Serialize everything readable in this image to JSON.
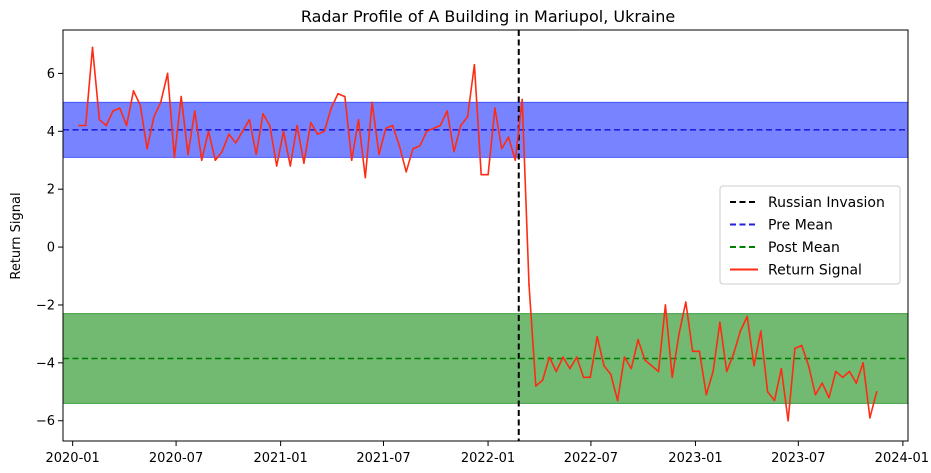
{
  "chart_data": {
    "type": "line",
    "title": "Radar Profile of A Building in Mariupol, Ukraine",
    "xlabel": "",
    "ylabel": "Return Signal",
    "x_type": "date",
    "xlim": [
      "2019-12-15",
      "2024-01-10"
    ],
    "ylim": [
      -6.7,
      7.5
    ],
    "grid": false,
    "legend_position": "center-right",
    "x_ticks": [
      {
        "date": "2020-01-01",
        "label": "2020-01"
      },
      {
        "date": "2020-07-01",
        "label": "2020-07"
      },
      {
        "date": "2021-01-01",
        "label": "2021-01"
      },
      {
        "date": "2021-07-01",
        "label": "2021-07"
      },
      {
        "date": "2022-01-01",
        "label": "2022-01"
      },
      {
        "date": "2022-07-01",
        "label": "2022-07"
      },
      {
        "date": "2023-01-01",
        "label": "2023-01"
      },
      {
        "date": "2023-07-01",
        "label": "2023-07"
      },
      {
        "date": "2024-01-01",
        "label": "2024-01"
      }
    ],
    "y_ticks": [
      -6,
      -4,
      -2,
      0,
      2,
      4,
      6
    ],
    "bands": [
      {
        "series": "Pre Mean",
        "y0": 3.1,
        "y1": 5.0,
        "color": "#4455ff"
      },
      {
        "series": "Post Mean",
        "y0": -5.4,
        "y1": -2.3,
        "color": "#3b9e3b"
      }
    ],
    "series": [
      {
        "name": "Return Signal",
        "color": "#ff2b12",
        "points": [
          [
            "2020-01-12",
            4.2
          ],
          [
            "2020-01-24",
            4.2
          ],
          [
            "2020-02-05",
            6.9
          ],
          [
            "2020-02-17",
            4.4
          ],
          [
            "2020-02-29",
            4.2
          ],
          [
            "2020-03-12",
            4.7
          ],
          [
            "2020-03-24",
            4.8
          ],
          [
            "2020-04-05",
            4.2
          ],
          [
            "2020-04-17",
            5.4
          ],
          [
            "2020-04-29",
            4.9
          ],
          [
            "2020-05-11",
            3.4
          ],
          [
            "2020-05-23",
            4.5
          ],
          [
            "2020-06-04",
            5.0
          ],
          [
            "2020-06-16",
            6.0
          ],
          [
            "2020-06-28",
            3.1
          ],
          [
            "2020-07-10",
            5.2
          ],
          [
            "2020-07-22",
            3.2
          ],
          [
            "2020-08-03",
            4.7
          ],
          [
            "2020-08-15",
            3.0
          ],
          [
            "2020-08-27",
            4.0
          ],
          [
            "2020-09-08",
            3.0
          ],
          [
            "2020-09-20",
            3.3
          ],
          [
            "2020-10-02",
            3.9
          ],
          [
            "2020-10-14",
            3.6
          ],
          [
            "2020-10-26",
            4.0
          ],
          [
            "2020-11-07",
            4.4
          ],
          [
            "2020-11-19",
            3.2
          ],
          [
            "2020-12-01",
            4.6
          ],
          [
            "2020-12-13",
            4.2
          ],
          [
            "2020-12-25",
            2.8
          ],
          [
            "2021-01-06",
            4.0
          ],
          [
            "2021-01-18",
            2.8
          ],
          [
            "2021-01-30",
            4.2
          ],
          [
            "2021-02-11",
            2.9
          ],
          [
            "2021-02-23",
            4.3
          ],
          [
            "2021-03-07",
            3.9
          ],
          [
            "2021-03-19",
            4.0
          ],
          [
            "2021-03-31",
            4.8
          ],
          [
            "2021-04-12",
            5.3
          ],
          [
            "2021-04-24",
            5.2
          ],
          [
            "2021-05-06",
            3.0
          ],
          [
            "2021-05-18",
            4.4
          ],
          [
            "2021-05-30",
            2.4
          ],
          [
            "2021-06-11",
            5.0
          ],
          [
            "2021-06-23",
            3.2
          ],
          [
            "2021-07-05",
            4.1
          ],
          [
            "2021-07-17",
            4.2
          ],
          [
            "2021-07-29",
            3.5
          ],
          [
            "2021-08-10",
            2.6
          ],
          [
            "2021-08-22",
            3.4
          ],
          [
            "2021-09-03",
            3.5
          ],
          [
            "2021-09-15",
            4.0
          ],
          [
            "2021-09-27",
            4.1
          ],
          [
            "2021-10-09",
            4.2
          ],
          [
            "2021-10-21",
            4.7
          ],
          [
            "2021-11-02",
            3.3
          ],
          [
            "2021-11-14",
            4.2
          ],
          [
            "2021-11-26",
            4.5
          ],
          [
            "2021-12-08",
            6.3
          ],
          [
            "2021-12-20",
            2.5
          ],
          [
            "2022-01-01",
            2.5
          ],
          [
            "2022-01-13",
            4.8
          ],
          [
            "2022-01-25",
            3.4
          ],
          [
            "2022-02-06",
            3.8
          ],
          [
            "2022-02-18",
            3.0
          ],
          [
            "2022-03-02",
            5.1
          ],
          [
            "2022-03-14",
            -1.3
          ],
          [
            "2022-03-26",
            -4.8
          ],
          [
            "2022-04-07",
            -4.6
          ],
          [
            "2022-04-19",
            -3.8
          ],
          [
            "2022-05-01",
            -4.3
          ],
          [
            "2022-05-13",
            -3.8
          ],
          [
            "2022-05-25",
            -4.2
          ],
          [
            "2022-06-06",
            -3.8
          ],
          [
            "2022-06-18",
            -4.5
          ],
          [
            "2022-06-30",
            -4.5
          ],
          [
            "2022-07-12",
            -3.1
          ],
          [
            "2022-07-24",
            -4.1
          ],
          [
            "2022-08-05",
            -4.4
          ],
          [
            "2022-08-17",
            -5.3
          ],
          [
            "2022-08-29",
            -3.8
          ],
          [
            "2022-09-10",
            -4.2
          ],
          [
            "2022-09-22",
            -3.2
          ],
          [
            "2022-10-04",
            -3.9
          ],
          [
            "2022-10-16",
            -4.1
          ],
          [
            "2022-10-28",
            -4.3
          ],
          [
            "2022-11-09",
            -2.0
          ],
          [
            "2022-11-21",
            -4.5
          ],
          [
            "2022-12-03",
            -3.0
          ],
          [
            "2022-12-15",
            -1.9
          ],
          [
            "2022-12-27",
            -3.6
          ],
          [
            "2023-01-08",
            -3.6
          ],
          [
            "2023-01-20",
            -5.1
          ],
          [
            "2023-02-01",
            -4.3
          ],
          [
            "2023-02-13",
            -2.6
          ],
          [
            "2023-02-25",
            -4.3
          ],
          [
            "2023-03-09",
            -3.7
          ],
          [
            "2023-03-21",
            -2.9
          ],
          [
            "2023-04-02",
            -2.4
          ],
          [
            "2023-04-14",
            -4.1
          ],
          [
            "2023-04-26",
            -2.9
          ],
          [
            "2023-05-08",
            -5.0
          ],
          [
            "2023-05-20",
            -5.3
          ],
          [
            "2023-06-01",
            -4.2
          ],
          [
            "2023-06-13",
            -6.0
          ],
          [
            "2023-06-25",
            -3.5
          ],
          [
            "2023-07-07",
            -3.4
          ],
          [
            "2023-07-19",
            -4.1
          ],
          [
            "2023-07-31",
            -5.1
          ],
          [
            "2023-08-12",
            -4.7
          ],
          [
            "2023-08-24",
            -5.2
          ],
          [
            "2023-09-05",
            -4.3
          ],
          [
            "2023-09-17",
            -4.5
          ],
          [
            "2023-09-29",
            -4.3
          ],
          [
            "2023-10-11",
            -4.7
          ],
          [
            "2023-10-23",
            -4.0
          ],
          [
            "2023-11-04",
            -5.9
          ],
          [
            "2023-11-16",
            -5.0
          ]
        ]
      },
      {
        "name": "Russian Invasion",
        "type": "vline",
        "x": "2022-02-24",
        "color": "#000000",
        "dash": true
      },
      {
        "name": "Pre Mean",
        "type": "hline",
        "y": 4.05,
        "color": "#1f1fdd",
        "dash": true
      },
      {
        "name": "Post Mean",
        "type": "hline",
        "y": -3.85,
        "color": "#008000",
        "dash": true
      }
    ],
    "legend": [
      {
        "label": "Russian Invasion",
        "color": "#000000",
        "style": "dashed"
      },
      {
        "label": "Pre Mean",
        "color": "#1f1fdd",
        "style": "dashed"
      },
      {
        "label": "Post Mean",
        "color": "#008000",
        "style": "dashed"
      },
      {
        "label": "Return Signal",
        "color": "#ff2b12",
        "style": "solid"
      }
    ]
  }
}
